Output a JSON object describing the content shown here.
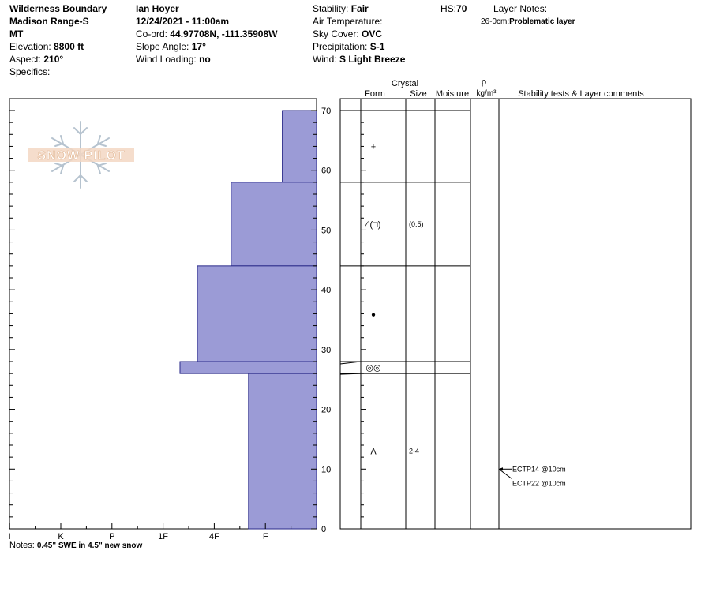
{
  "header": {
    "location": "Wilderness Boundary",
    "range": "Madison Range-S",
    "state": "MT",
    "elevation_label": "Elevation:",
    "elevation_value": "8800 ft",
    "aspect_label": "Aspect:",
    "aspect_value": "210°",
    "specifics_label": "Specifics:",
    "observer": "Ian Hoyer",
    "datetime": "12/24/2021 - 11:00am",
    "coord_label": "Co-ord:",
    "coord_value": "44.97708N, -111.35908W",
    "slope_label": "Slope Angle:",
    "slope_value": "17°",
    "wind_loading_label": "Wind Loading:",
    "wind_loading_value": "no",
    "stability_label": "Stability:",
    "stability_value": "Fair",
    "air_temp_label": "Air Temperature:",
    "sky_label": "Sky Cover:",
    "sky_value": "OVC",
    "precip_label": "Precipitation:",
    "precip_value": "S-1",
    "wind_label": "Wind:",
    "wind_value": "S Light Breeze",
    "hs_label": "HS:",
    "hs_value": "70",
    "layer_notes_label": "Layer Notes:",
    "layer_note_range": "26-0cm:",
    "layer_note_text": "Problematic layer"
  },
  "columns": {
    "crystal": "Crystal",
    "form": "Form",
    "size": "Size",
    "moisture": "Moisture",
    "rho": "ρ",
    "density_unit": "kg/m³",
    "comments": "Stability tests & Layer comments"
  },
  "notes": {
    "label": "Notes:",
    "text": "0.45\" SWE in 4.5\" new snow"
  },
  "watermark_text": "SNOW PILOT",
  "colors": {
    "hardness_fill": "#9b9bd6",
    "hardness_stroke": "#2a2a8a"
  },
  "chart_data": {
    "type": "bar",
    "orientation": "horizontal",
    "ylim": [
      0,
      70
    ],
    "ytick_values": [
      0,
      10,
      20,
      30,
      40,
      50,
      60,
      70
    ],
    "hardness_scale": [
      "F",
      "4F",
      "1F",
      "P",
      "K",
      "I"
    ],
    "hardness_ticks": [
      {
        "label": "I",
        "value": 6
      },
      {
        "label": "K",
        "value": 5
      },
      {
        "label": "P",
        "value": 4
      },
      {
        "label": "1F",
        "value": 3
      },
      {
        "label": "4F",
        "value": 2
      },
      {
        "label": "F",
        "value": 1
      }
    ],
    "layers": [
      {
        "top": 70,
        "bottom": 58,
        "hardness_value": 0.67,
        "form": "+",
        "size": ""
      },
      {
        "top": 58,
        "bottom": 44,
        "hardness_value": 1.67,
        "form": "∕ (□)",
        "size": "(0.5)"
      },
      {
        "top": 44,
        "bottom": 28,
        "hardness_value": 2.33,
        "form": "●",
        "size": ""
      },
      {
        "top": 28,
        "bottom": 26,
        "hardness_value": 2.67,
        "form": "◎◎",
        "size": ""
      },
      {
        "top": 26,
        "bottom": 0,
        "hardness_value": 1.33,
        "form": "Λ",
        "size": "2-4"
      }
    ],
    "stability_tests": [
      {
        "depth": 10,
        "text": "ECTP14 @10cm"
      },
      {
        "depth": 10,
        "text": "ECTP22 @10cm"
      }
    ]
  }
}
